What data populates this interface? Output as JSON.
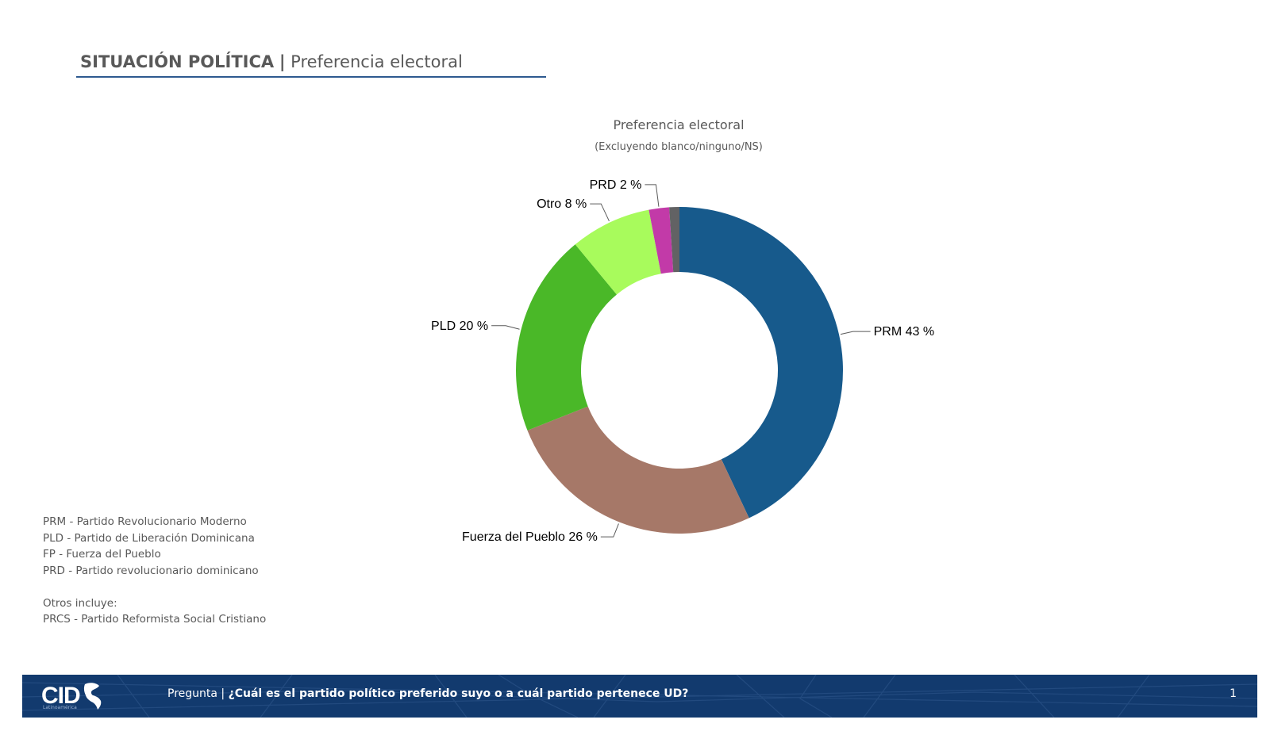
{
  "header": {
    "section": "SITUACIÓN POLÍTICA",
    "separator": "|",
    "subtitle": "Preferencia electoral"
  },
  "chart_data": {
    "type": "pie",
    "title": "Preferencia electoral",
    "subtitle": "(Excluyendo blanco/ninguno/NS)",
    "donut": true,
    "slices": [
      {
        "name": "PRM",
        "value": 43,
        "label": "PRM 43 %",
        "color": "#175a8c"
      },
      {
        "name": "Fuerza del Pueblo",
        "value": 26,
        "label": "Fuerza del Pueblo 26 %",
        "color": "#a67868"
      },
      {
        "name": "PLD",
        "value": 20,
        "label": "PLD 20 %",
        "color": "#4ab828"
      },
      {
        "name": "Otro",
        "value": 8,
        "label": "Otro 8 %",
        "color": "#a8fb5c"
      },
      {
        "name": "PRD",
        "value": 2,
        "label": "PRD 2 %",
        "color": "#c23aa8"
      },
      {
        "name": "",
        "value": 1,
        "label": "",
        "color": "#626264"
      }
    ]
  },
  "notes": {
    "abbreviations": [
      "PRM - Partido Revolucionario Moderno",
      "PLD - Partido de Liberación Dominicana",
      "FP - Fuerza del Pueblo",
      "PRD - Partido revolucionario dominicano"
    ],
    "others_heading": "Otros incluye:",
    "others": [
      "PRCS - Partido Reformista Social Cristiano"
    ]
  },
  "footer": {
    "logo": "CID",
    "logo_sub": "Latinoamérica",
    "question_label": "Pregunta",
    "question_separator": "|",
    "question": "¿Cuál es el partido político preferido suyo o a cuál partido pertenece UD?",
    "page_number": "1",
    "background_color": "#123a6e"
  }
}
